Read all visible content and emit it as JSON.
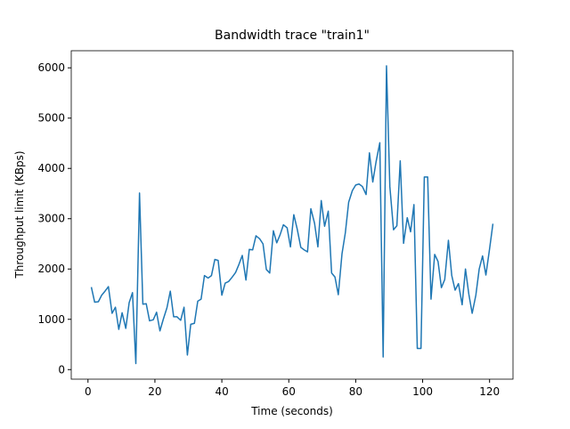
{
  "chart_data": {
    "type": "line",
    "title": "Bandwidth trace \"train1\"",
    "x_label": "Time (seconds)",
    "y_label": "Throughput limit (KBps)",
    "x": [
      1.0,
      2.0,
      3.1,
      4.1,
      5.1,
      6.1,
      7.2,
      8.2,
      9.2,
      10.2,
      11.3,
      12.3,
      13.3,
      14.3,
      15.4,
      16.4,
      17.4,
      18.4,
      19.5,
      20.5,
      21.5,
      22.5,
      23.6,
      24.6,
      25.6,
      26.6,
      27.7,
      28.7,
      29.7,
      30.7,
      31.8,
      32.8,
      33.8,
      34.8,
      35.9,
      36.9,
      37.9,
      38.9,
      40.0,
      41.0,
      42.0,
      43.1,
      44.1,
      45.1,
      46.1,
      47.2,
      48.2,
      49.2,
      50.2,
      51.3,
      52.3,
      53.3,
      54.3,
      55.4,
      56.4,
      57.4,
      58.4,
      59.5,
      60.5,
      61.5,
      62.5,
      63.6,
      64.6,
      65.6,
      66.6,
      67.7,
      68.7,
      69.7,
      70.7,
      71.8,
      72.8,
      73.8,
      74.8,
      75.9,
      76.9,
      77.9,
      79.0,
      80.0,
      81.0,
      82.0,
      83.1,
      84.1,
      85.1,
      86.1,
      87.2,
      88.2,
      89.2,
      90.2,
      91.3,
      92.3,
      93.3,
      94.3,
      95.4,
      96.4,
      97.4,
      98.4,
      99.5,
      100.5,
      101.5,
      102.5,
      103.6,
      104.6,
      105.6,
      106.6,
      107.7,
      108.7,
      109.7,
      110.7,
      111.8,
      112.8,
      113.8,
      114.8,
      115.9,
      116.9,
      117.9,
      118.9,
      120.0,
      121.0
    ],
    "series": [
      {
        "color": "#1f77b4",
        "values": [
          1640,
          1340,
          1350,
          1480,
          1560,
          1650,
          1120,
          1240,
          800,
          1130,
          820,
          1330,
          1530,
          120,
          3510,
          1300,
          1310,
          970,
          990,
          1140,
          770,
          1000,
          1230,
          1560,
          1050,
          1050,
          980,
          1240,
          290,
          900,
          920,
          1360,
          1400,
          1870,
          1820,
          1870,
          2190,
          2170,
          1480,
          1720,
          1750,
          1840,
          1930,
          2090,
          2270,
          1780,
          2390,
          2380,
          2660,
          2600,
          2500,
          1990,
          1920,
          2760,
          2520,
          2680,
          2880,
          2820,
          2440,
          3080,
          2800,
          2430,
          2380,
          2340,
          3200,
          2910,
          2440,
          3360,
          2850,
          3150,
          1920,
          1840,
          1490,
          2300,
          2720,
          3330,
          3560,
          3670,
          3690,
          3640,
          3480,
          4310,
          3730,
          4140,
          4510,
          250,
          6040,
          3640,
          2780,
          2860,
          4150,
          2510,
          3020,
          2740,
          3280,
          420,
          420,
          3830,
          3830,
          1400,
          2290,
          2150,
          1630,
          1790,
          2570,
          1870,
          1580,
          1710,
          1290,
          2000,
          1500,
          1120,
          1480,
          2000,
          2260,
          1880,
          2400,
          2900
        ]
      }
    ],
    "xlim": [
      -5,
      127
    ],
    "ylim": [
      -190,
      6340
    ],
    "xticks": [
      0,
      20,
      40,
      60,
      80,
      100,
      120
    ],
    "yticks": [
      0,
      1000,
      2000,
      3000,
      4000,
      5000,
      6000
    ]
  }
}
